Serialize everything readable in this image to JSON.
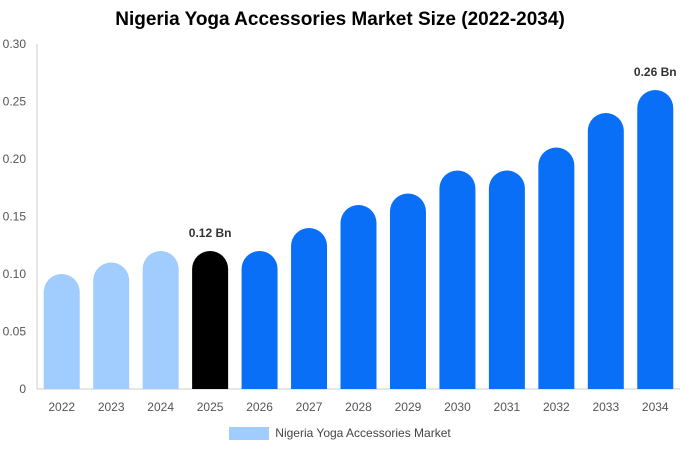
{
  "chart_data": {
    "type": "bar",
    "title": "Nigeria Yoga Accessories Market Size (2022-2034)",
    "categories": [
      "2022",
      "2023",
      "2024",
      "2025",
      "2026",
      "2027",
      "2028",
      "2029",
      "2030",
      "2031",
      "2032",
      "2033",
      "2034"
    ],
    "series": [
      {
        "name": "Nigeria Yoga Accessories Market",
        "values": [
          0.1,
          0.11,
          0.12,
          0.12,
          0.12,
          0.14,
          0.16,
          0.17,
          0.19,
          0.19,
          0.21,
          0.24,
          0.26
        ]
      }
    ],
    "ylim": [
      0,
      0.3
    ],
    "yticks": [
      "0",
      "0.05",
      "0.10",
      "0.15",
      "0.20",
      "0.25",
      "0.30"
    ],
    "annotations": [
      {
        "category": "2025",
        "text": "0.12 Bn"
      },
      {
        "category": "2034",
        "text": "0.26 Bn"
      }
    ],
    "bar_colors": {
      "historical": "#a0cdfd",
      "current": "#000000",
      "forecast": "#0a6ff7"
    },
    "color_by_category": [
      "historical",
      "historical",
      "historical",
      "current",
      "forecast",
      "forecast",
      "forecast",
      "forecast",
      "forecast",
      "forecast",
      "forecast",
      "forecast",
      "forecast"
    ],
    "legend_color": "#a0cdfd",
    "grid": false,
    "legend_position": "bottom"
  }
}
